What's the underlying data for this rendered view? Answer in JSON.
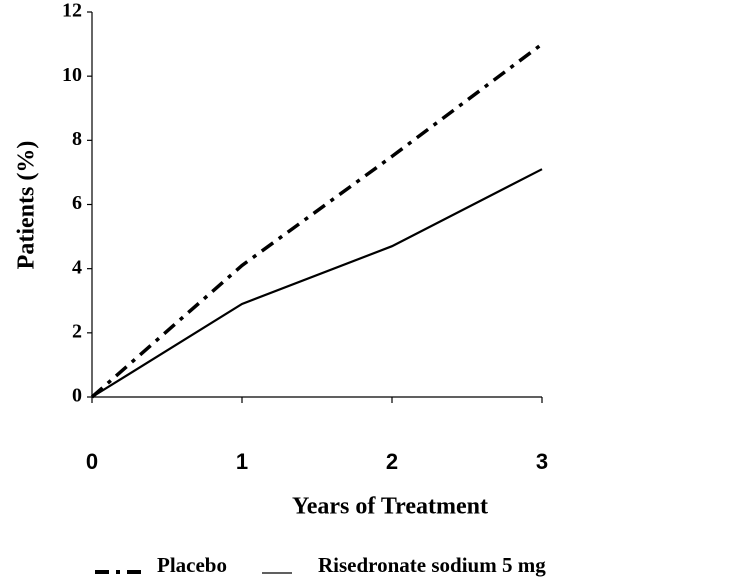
{
  "chart_data": {
    "type": "line",
    "x_label": "Years of Treatment",
    "y_label": "Patients (%)",
    "x": [
      0,
      1,
      2,
      3
    ],
    "xlim": [
      0,
      3
    ],
    "xticks": [
      0,
      1,
      2,
      3
    ],
    "ylim": [
      0,
      12
    ],
    "yticks": [
      0,
      2,
      4,
      6,
      8,
      10,
      12
    ],
    "series": [
      {
        "name": "Placebo",
        "color": "#000000",
        "dash": "dashdot",
        "values": [
          0,
          4.1,
          7.5,
          11.0
        ]
      },
      {
        "name": "Risedronate sodium 5 mg",
        "color": "#000000",
        "dash": "solid",
        "values": [
          0,
          2.9,
          4.7,
          7.1
        ]
      }
    ]
  }
}
